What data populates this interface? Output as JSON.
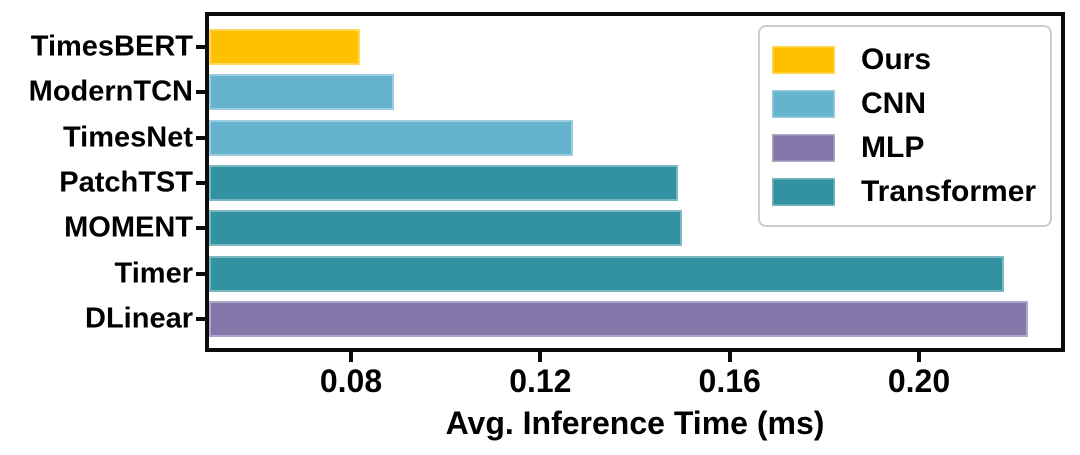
{
  "chart_data": {
    "type": "bar",
    "orientation": "horizontal",
    "title": "",
    "xlabel": "Avg. Inference Time (ms)",
    "ylabel": "",
    "xlim": [
      0.05,
      0.23
    ],
    "grid": false,
    "background": "#FFFFFF",
    "spine_color": "#0C0C0C",
    "categories": [
      "TimesBERT",
      "ModernTCN",
      "TimesNet",
      "PatchTST",
      "MOMENT",
      "Timer",
      "DLinear"
    ],
    "values": [
      0.082,
      0.089,
      0.127,
      0.149,
      0.15,
      0.218,
      0.223
    ],
    "groups": [
      "Ours",
      "CNN",
      "CNN",
      "Transformer",
      "Transformer",
      "Transformer",
      "MLP"
    ],
    "group_colors": {
      "Ours": "#FEC100",
      "CNN": "#66B3CF",
      "MLP": "#8677AB",
      "Transformer": "#3392A1"
    },
    "xticks": [
      {
        "label": "0.08",
        "value": 0.08
      },
      {
        "label": "0.12",
        "value": 0.12
      },
      {
        "label": "0.16",
        "value": 0.16
      },
      {
        "label": "0.20",
        "value": 0.2
      }
    ],
    "legend": {
      "position": "upper-right",
      "entries": [
        {
          "label": "Ours",
          "color": "#FEC100"
        },
        {
          "label": "CNN",
          "color": "#66B3CF"
        },
        {
          "label": "MLP",
          "color": "#8677AB"
        },
        {
          "label": "Transformer",
          "color": "#3392A1"
        }
      ]
    }
  }
}
